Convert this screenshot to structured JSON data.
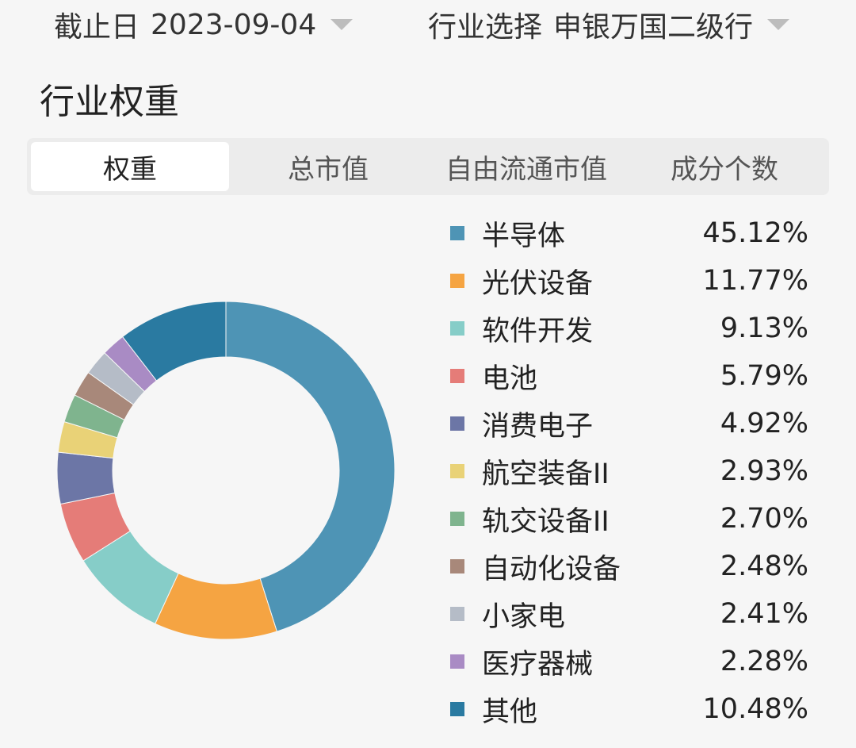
{
  "filters": {
    "date": {
      "label": "截止日",
      "value": "2023-09-04"
    },
    "industry": {
      "label": "行业选择",
      "value": "申银万国二级行"
    }
  },
  "section_title": "行业权重",
  "tabs": [
    {
      "label": "权重",
      "active": true
    },
    {
      "label": "总市值",
      "active": false
    },
    {
      "label": "自由流通市值",
      "active": false
    },
    {
      "label": "成分个数",
      "active": false
    }
  ],
  "chart_data": {
    "type": "pie",
    "donut": true,
    "legend_placement": "right",
    "categories": [
      "半导体",
      "光伏设备",
      "软件开发",
      "电池",
      "消费电子",
      "航空装备II",
      "轨交设备II",
      "自动化设备",
      "小家电",
      "医疗器械",
      "其他"
    ],
    "values": [
      45.12,
      11.77,
      9.13,
      5.79,
      4.92,
      2.93,
      2.7,
      2.48,
      2.41,
      2.28,
      10.48
    ],
    "value_labels": [
      "45.12%",
      "11.77%",
      "9.13%",
      "5.79%",
      "4.92%",
      "2.93%",
      "2.70%",
      "2.48%",
      "2.41%",
      "2.28%",
      "10.48%"
    ],
    "colors": [
      "#4e94b5",
      "#f5a442",
      "#86cdc8",
      "#e57c78",
      "#6c76a6",
      "#e9d277",
      "#7fb48e",
      "#a8887a",
      "#b5bcc7",
      "#a98bc4",
      "#2a7aa1"
    ]
  }
}
